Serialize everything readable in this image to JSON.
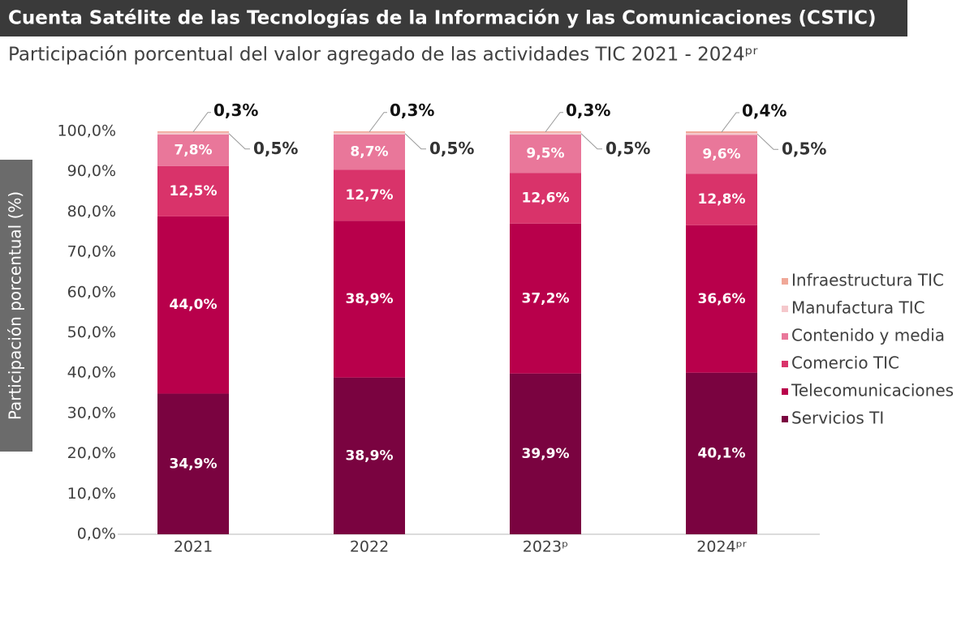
{
  "chart_data": {
    "type": "stacked_bar",
    "title": "Cuenta Satélite de las Tecnologías de la Información y las Comunicaciones (CSTIC)",
    "subtitle": "Participación porcentual del valor agregado de las actividades TIC 2021 - 2024ᵖʳ",
    "y_label": "Participación porcentual (%)",
    "categories": [
      "2021",
      "2022",
      "2023ᵖ",
      "2024ᵖʳ"
    ],
    "series": [
      {
        "name": "Servicios TI",
        "color": "#7a0340",
        "values": [
          34.9,
          38.9,
          39.9,
          40.1
        ],
        "value_labels": [
          "34,9%",
          "38,9%",
          "39,9%",
          "40,1%"
        ]
      },
      {
        "name": "Telecomunicaciones",
        "color": "#b8004b",
        "values": [
          44.0,
          38.9,
          37.2,
          36.6
        ],
        "value_labels": [
          "44,0%",
          "38,9%",
          "37,2%",
          "36,6%"
        ]
      },
      {
        "name": "Comercio TIC",
        "color": "#d9336a",
        "values": [
          12.5,
          12.7,
          12.6,
          12.8
        ],
        "value_labels": [
          "12,5%",
          "12,7%",
          "12,6%",
          "12,8%"
        ]
      },
      {
        "name": "Contenido y media",
        "color": "#e9779a",
        "values": [
          7.8,
          8.7,
          9.5,
          9.6
        ],
        "value_labels": [
          "7,8%",
          "8,7%",
          "9,5%",
          "9,6%"
        ]
      },
      {
        "name": "Manufactura TIC",
        "color": "#f5c8cc",
        "values": [
          0.5,
          0.5,
          0.5,
          0.5
        ],
        "value_labels": [
          "0,5%",
          "0,5%",
          "0,5%",
          "0,5%"
        ]
      },
      {
        "name": "Infraestructura TIC",
        "color": "#f0a898",
        "values": [
          0.3,
          0.3,
          0.3,
          0.4
        ],
        "value_labels": [
          "0,3%",
          "0,3%",
          "0,3%",
          "0,4%"
        ]
      }
    ],
    "ylim": [
      0,
      100
    ],
    "yticks": [
      {
        "value": 0,
        "label": "0,0%"
      },
      {
        "value": 10,
        "label": "10,0%"
      },
      {
        "value": 20,
        "label": "20,0%"
      },
      {
        "value": 30,
        "label": "30,0%"
      },
      {
        "value": 40,
        "label": "40,0%"
      },
      {
        "value": 50,
        "label": "50,0%"
      },
      {
        "value": 60,
        "label": "60,0%"
      },
      {
        "value": 70,
        "label": "70,0%"
      },
      {
        "value": 80,
        "label": "80,0%"
      },
      {
        "value": 90,
        "label": "90,0%"
      },
      {
        "value": 100,
        "label": "100,0%"
      }
    ],
    "grid": false,
    "legend": "right"
  }
}
